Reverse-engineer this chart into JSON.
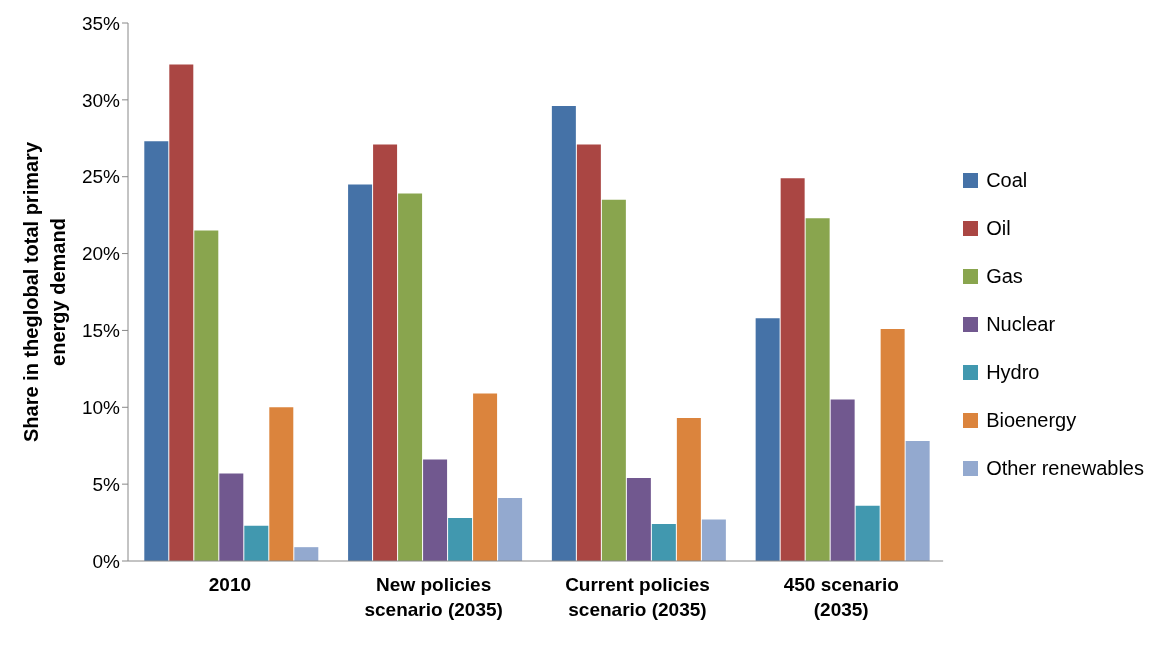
{
  "chart_data": {
    "type": "bar",
    "ylabel": "Share in theglobal total primary energy demand",
    "categories": [
      "2010",
      "New policies scenario (2035)",
      "Current policies scenario (2035)",
      "450 scenario (2035)"
    ],
    "series": [
      {
        "name": "Coal",
        "color": "#4572a7",
        "values": [
          27.3,
          24.5,
          29.6,
          15.8
        ]
      },
      {
        "name": "Oil",
        "color": "#aa4643",
        "values": [
          32.3,
          27.1,
          27.1,
          24.9
        ]
      },
      {
        "name": "Gas",
        "color": "#89a54e",
        "values": [
          21.5,
          23.9,
          23.5,
          22.3
        ]
      },
      {
        "name": "Nuclear",
        "color": "#71588f",
        "values": [
          5.7,
          6.6,
          5.4,
          10.5
        ]
      },
      {
        "name": "Hydro",
        "color": "#4198af",
        "values": [
          2.3,
          2.8,
          2.4,
          3.6
        ]
      },
      {
        "name": "Bioenergy",
        "color": "#db843d",
        "values": [
          10.0,
          10.9,
          9.3,
          15.1
        ]
      },
      {
        "name": "Other renewables",
        "color": "#93a9cf",
        "values": [
          0.9,
          4.1,
          2.7,
          7.8
        ]
      }
    ],
    "ylim": [
      0,
      35
    ],
    "yticks": [
      {
        "value": 0,
        "label": "0%"
      },
      {
        "value": 5,
        "label": "5%"
      },
      {
        "value": 10,
        "label": "10%"
      },
      {
        "value": 15,
        "label": "15%"
      },
      {
        "value": 20,
        "label": "20%"
      },
      {
        "value": 25,
        "label": "25%"
      },
      {
        "value": 30,
        "label": "30%"
      },
      {
        "value": 35,
        "label": "35%"
      }
    ],
    "grid": false,
    "legend": "right"
  }
}
